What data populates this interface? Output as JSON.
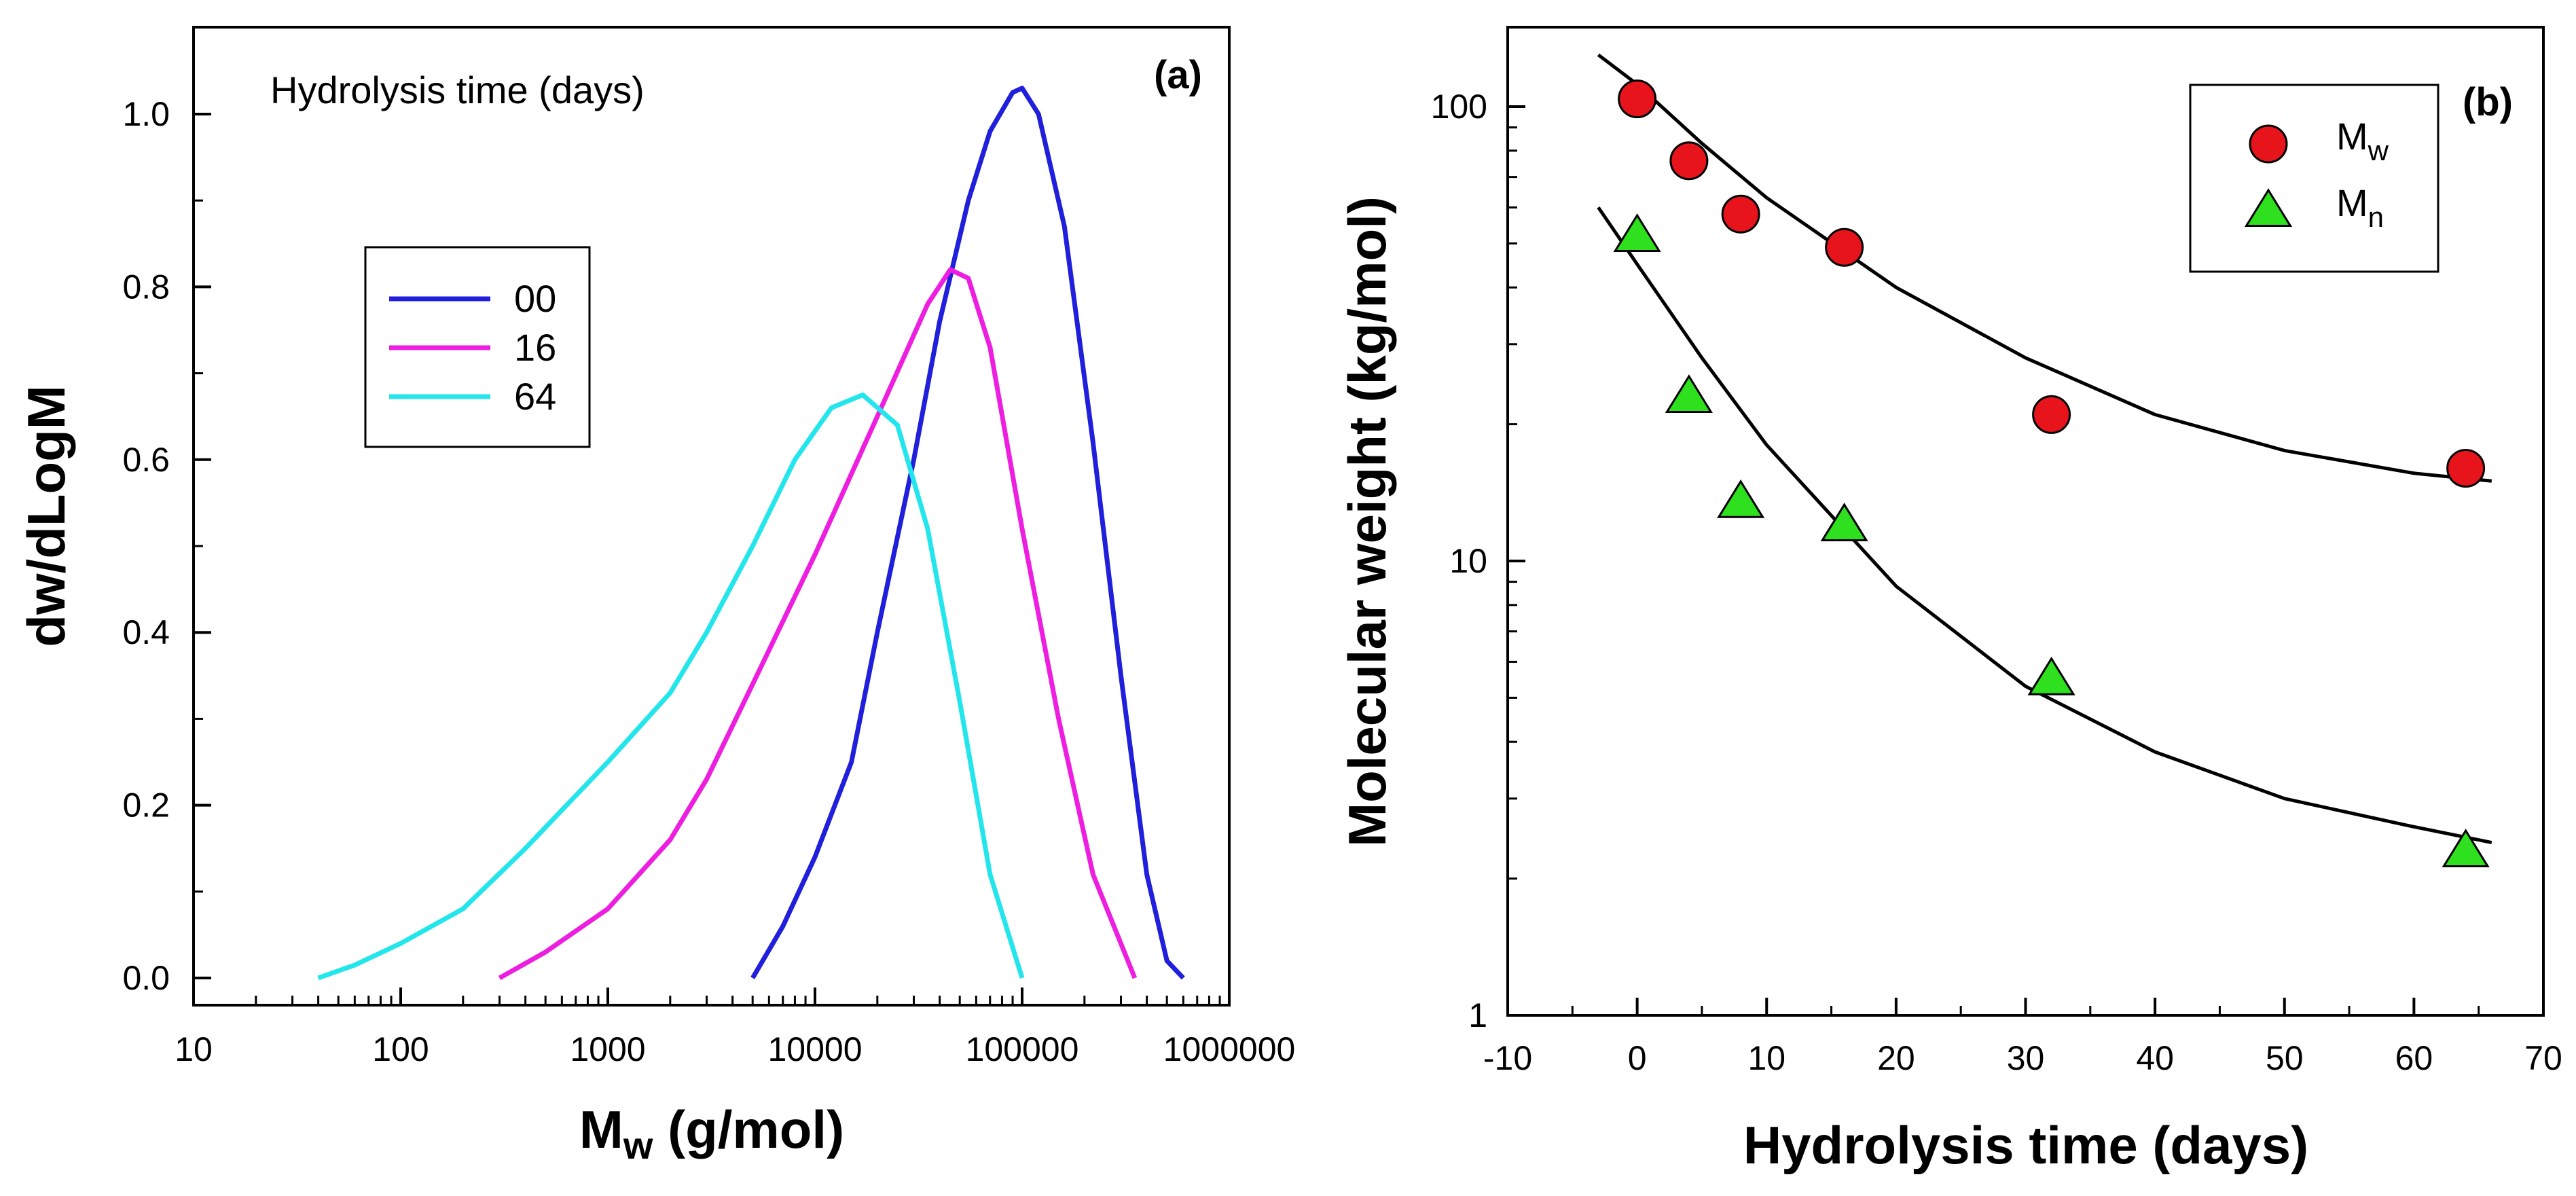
{
  "chart_data": [
    {
      "type": "line",
      "panel_label": "(a)",
      "xscale": "log",
      "xlim": [
        10,
        1000000
      ],
      "ylim": [
        0,
        1.05
      ],
      "x_ticks": [
        "10",
        "100",
        "1000",
        "10000",
        "100000",
        "1000000"
      ],
      "y_ticks": [
        "0.0",
        "0.2",
        "0.4",
        "0.6",
        "0.8",
        "1.0"
      ],
      "xlabel": {
        "main": "M",
        "sub": "w",
        "rest": " (g/mol)"
      },
      "ylabel": "dw/dLogM",
      "annotation": "Hydrolysis time (days)",
      "legend_position": "upper-left",
      "series": [
        {
          "name": "00",
          "color": "#1f1fdc",
          "points": [
            [
              5000,
              0.0
            ],
            [
              7000,
              0.06
            ],
            [
              10000,
              0.14
            ],
            [
              15000,
              0.25
            ],
            [
              20000,
              0.4
            ],
            [
              30000,
              0.6
            ],
            [
              40000,
              0.76
            ],
            [
              55000,
              0.9
            ],
            [
              70000,
              0.98
            ],
            [
              90000,
              1.025
            ],
            [
              100000,
              1.03
            ],
            [
              120000,
              1.0
            ],
            [
              160000,
              0.87
            ],
            [
              220000,
              0.62
            ],
            [
              300000,
              0.35
            ],
            [
              400000,
              0.12
            ],
            [
              500000,
              0.02
            ],
            [
              600000,
              0.0
            ]
          ]
        },
        {
          "name": "16",
          "color": "#ee1ee0",
          "points": [
            [
              300,
              0.0
            ],
            [
              500,
              0.03
            ],
            [
              1000,
              0.08
            ],
            [
              2000,
              0.16
            ],
            [
              3000,
              0.23
            ],
            [
              5000,
              0.34
            ],
            [
              10000,
              0.49
            ],
            [
              20000,
              0.65
            ],
            [
              35000,
              0.78
            ],
            [
              45000,
              0.82
            ],
            [
              55000,
              0.81
            ],
            [
              70000,
              0.73
            ],
            [
              100000,
              0.52
            ],
            [
              150000,
              0.3
            ],
            [
              220000,
              0.12
            ],
            [
              350000,
              0.0
            ]
          ]
        },
        {
          "name": "64",
          "color": "#22e6ec",
          "points": [
            [
              40,
              0.0
            ],
            [
              60,
              0.015
            ],
            [
              100,
              0.04
            ],
            [
              200,
              0.08
            ],
            [
              400,
              0.15
            ],
            [
              1000,
              0.25
            ],
            [
              2000,
              0.33
            ],
            [
              3000,
              0.4
            ],
            [
              5000,
              0.5
            ],
            [
              8000,
              0.6
            ],
            [
              12000,
              0.66
            ],
            [
              17000,
              0.675
            ],
            [
              25000,
              0.64
            ],
            [
              35000,
              0.52
            ],
            [
              50000,
              0.32
            ],
            [
              70000,
              0.12
            ],
            [
              100000,
              0.0
            ]
          ]
        }
      ]
    },
    {
      "type": "scatter",
      "panel_label": "(b)",
      "yscale": "log",
      "xlim": [
        -10,
        70
      ],
      "ylim": [
        1,
        150
      ],
      "x_ticks": [
        "-10",
        "0",
        "10",
        "20",
        "30",
        "40",
        "50",
        "60",
        "70"
      ],
      "y_ticks": [
        "1",
        "10",
        "100"
      ],
      "xlabel": "Hydrolysis time (days)",
      "ylabel": "Molecular weight (kg/mol)",
      "legend_position": "upper-right",
      "series": [
        {
          "name": "Mw",
          "label_main": "M",
          "label_sub": "w",
          "marker": "circle",
          "color": "#e8141c",
          "points": [
            [
              0,
              104
            ],
            [
              4,
              76
            ],
            [
              8,
              58
            ],
            [
              16,
              49
            ],
            [
              32,
              21
            ],
            [
              64,
              16
            ]
          ],
          "fit": [
            [
              -3,
              130
            ],
            [
              0,
              112
            ],
            [
              5,
              83
            ],
            [
              10,
              63
            ],
            [
              20,
              40
            ],
            [
              30,
              28
            ],
            [
              40,
              21
            ],
            [
              50,
              17.5
            ],
            [
              60,
              15.6
            ],
            [
              66,
              15
            ]
          ]
        },
        {
          "name": "Mn",
          "label_main": "M",
          "label_sub": "n",
          "marker": "triangle",
          "color": "#2ee01e",
          "points": [
            [
              0,
              52
            ],
            [
              4,
              23
            ],
            [
              8,
              13.5
            ],
            [
              16,
              12
            ],
            [
              32,
              5.5
            ],
            [
              64,
              2.3
            ]
          ],
          "fit": [
            [
              -3,
              60
            ],
            [
              0,
              45
            ],
            [
              5,
              28
            ],
            [
              10,
              18
            ],
            [
              20,
              8.8
            ],
            [
              30,
              5.3
            ],
            [
              40,
              3.8
            ],
            [
              50,
              3
            ],
            [
              60,
              2.6
            ],
            [
              66,
              2.4
            ]
          ]
        }
      ]
    }
  ]
}
